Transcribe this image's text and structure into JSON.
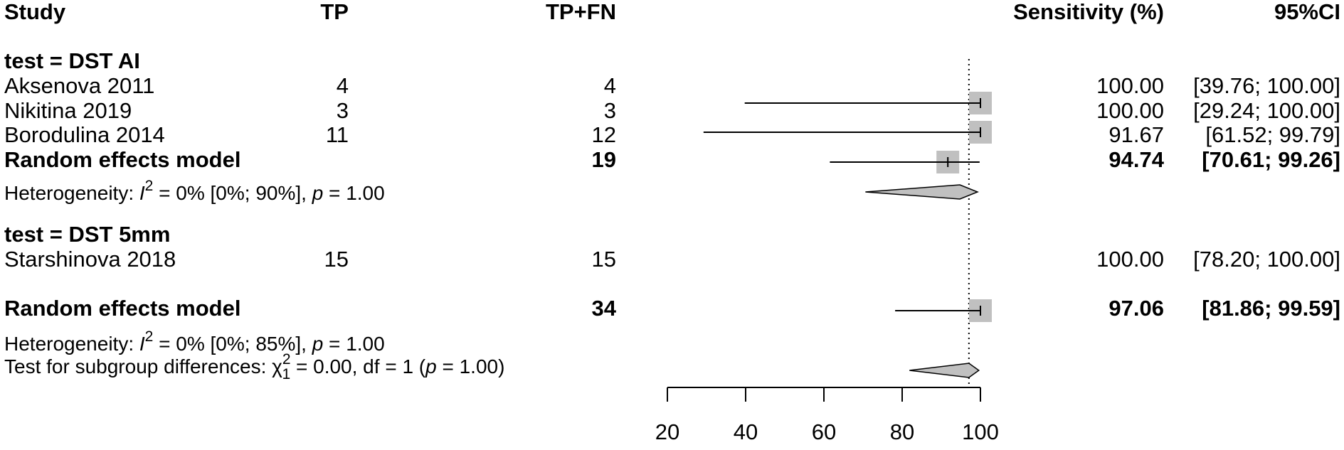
{
  "chart_data": {
    "type": "forest",
    "headers": {
      "study": "Study",
      "tp": "TP",
      "tpfn": "TP+FN",
      "sens": "Sensitivity (%)",
      "ci": "95%CI"
    },
    "xlim": [
      20,
      100
    ],
    "x_ticks": [
      20,
      40,
      60,
      80,
      100
    ],
    "overall_reference_line": 97.06,
    "subgroups": [
      {
        "label": "test = DST AI",
        "studies": [
          {
            "name": "Aksenova 2011",
            "tp": "4",
            "tpfn": "4",
            "estimate": 100.0,
            "lower": 39.76,
            "upper": 100.0,
            "est_text": "100.00",
            "ci_text": "[39.76; 100.00]"
          },
          {
            "name": "Nikitina 2019",
            "tp": "3",
            "tpfn": "3",
            "estimate": 100.0,
            "lower": 29.24,
            "upper": 100.0,
            "est_text": "100.00",
            "ci_text": "[29.24; 100.00]"
          },
          {
            "name": "Borodulina 2014",
            "tp": "11",
            "tpfn": "12",
            "estimate": 91.67,
            "lower": 61.52,
            "upper": 99.79,
            "est_text": "91.67",
            "ci_text": "[61.52;  99.79]"
          }
        ],
        "pooled": {
          "label": "Random effects model",
          "total": "19",
          "estimate": 94.74,
          "lower": 70.61,
          "upper": 99.26,
          "est_text": "94.74",
          "ci_text": "[70.61;  99.26]"
        },
        "heterogeneity": {
          "prefix": "Heterogeneity: ",
          "i": "I",
          "sup": "2",
          "mid": " = 0% [0%; 90%], ",
          "p": "p",
          "end": " = 1.00"
        }
      },
      {
        "label": "test = DST 5mm",
        "studies": [
          {
            "name": "Starshinova 2018",
            "tp": "15",
            "tpfn": "15",
            "estimate": 100.0,
            "lower": 78.2,
            "upper": 100.0,
            "est_text": "100.00",
            "ci_text": "[78.20; 100.00]"
          }
        ]
      }
    ],
    "overall": {
      "label": "Random effects model",
      "total": "34",
      "estimate": 97.06,
      "lower": 81.86,
      "upper": 99.59,
      "est_text": "97.06",
      "ci_text": "[81.86;  99.59]",
      "heterogeneity": {
        "prefix": "Heterogeneity: ",
        "i": "I",
        "sup": "2",
        "mid": " = 0% [0%; 85%], ",
        "p": "p",
        "end": " = 1.00"
      },
      "subgroup_test": {
        "prefix": "Test for subgroup differences: ",
        "chi": "χ",
        "sup": "2",
        "sub": "1",
        "mid": " = 0.00, df = 1 (",
        "p": "p",
        "end": " = 1.00)"
      }
    },
    "colors": {
      "square": "#c0c0c0",
      "diamond": "#c0c0c0",
      "line": "#000000"
    }
  }
}
